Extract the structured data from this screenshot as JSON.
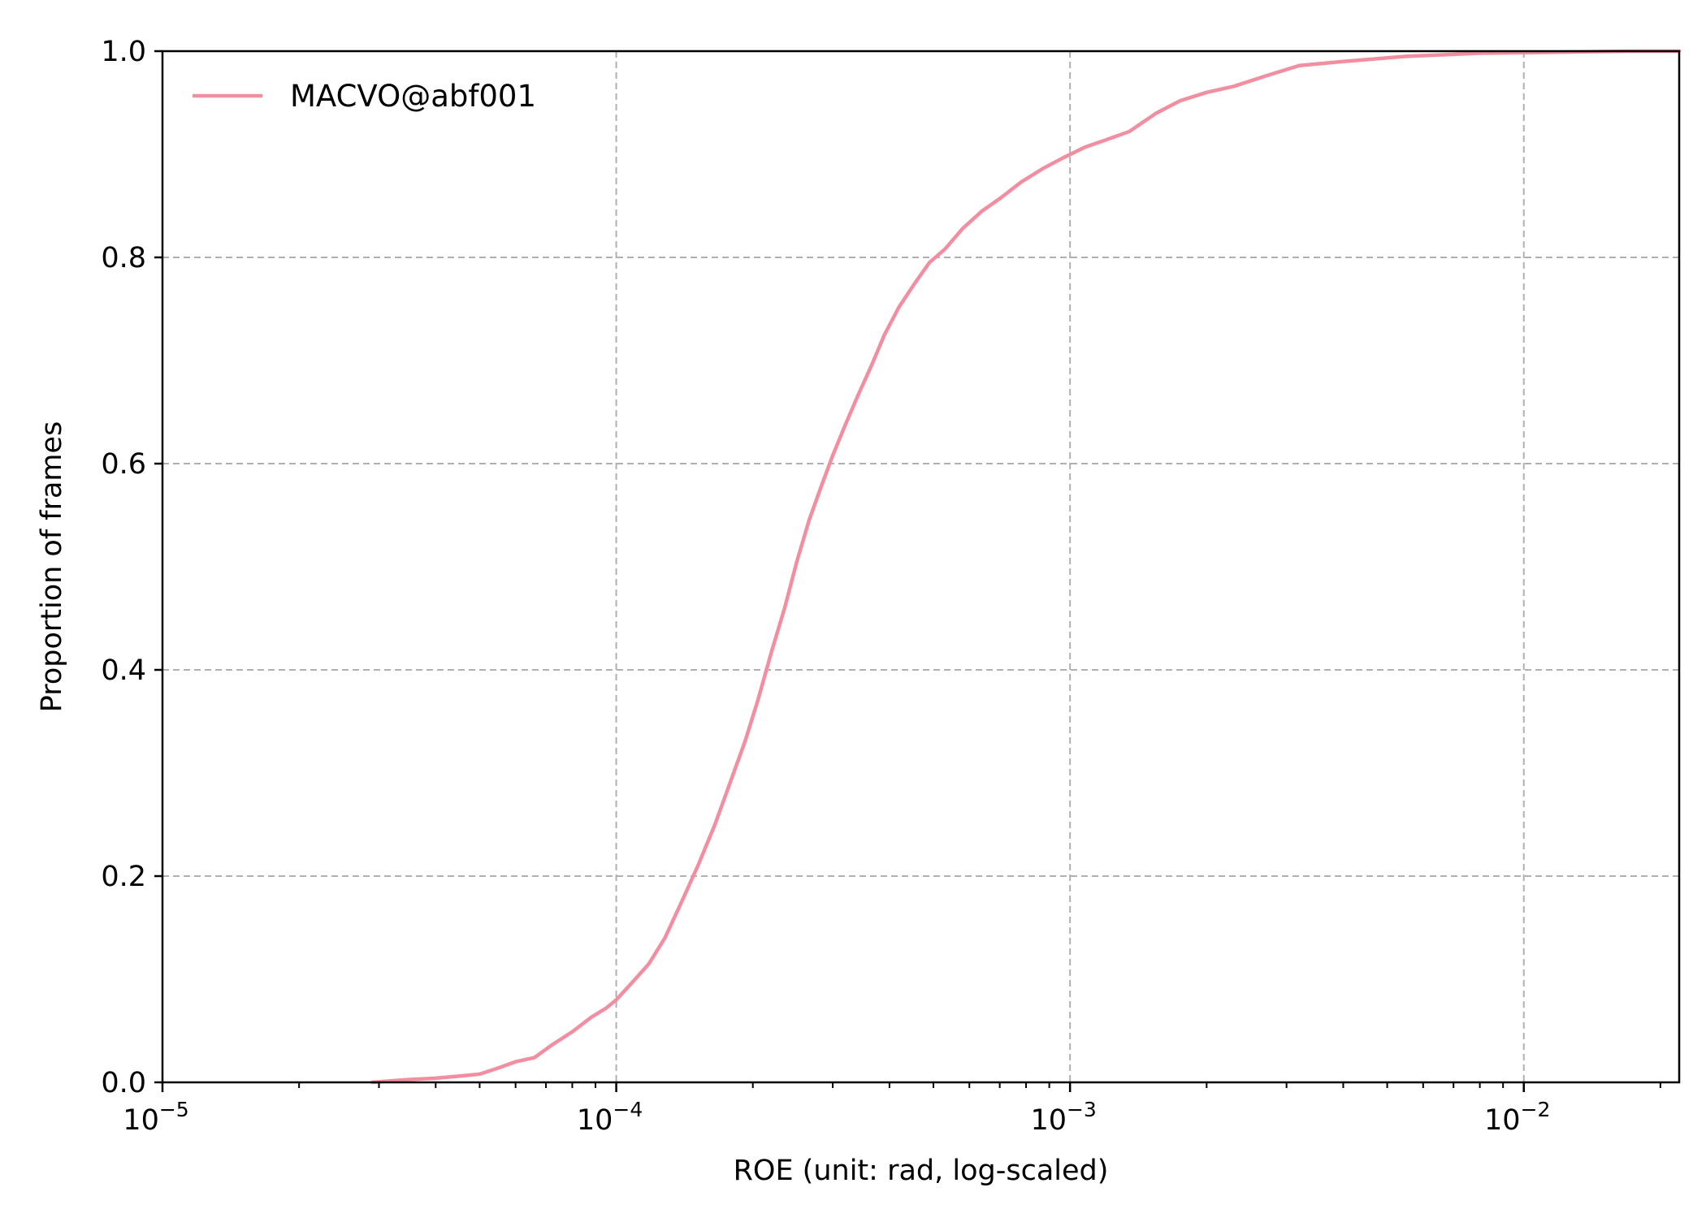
{
  "chart_data": {
    "type": "line",
    "title": "",
    "xlabel": "ROE (unit: rad, log-scaled)",
    "ylabel": "Proportion of frames",
    "xscale": "log",
    "xlim": [
      1e-05,
      0.022
    ],
    "ylim": [
      0.0,
      1.0
    ],
    "grid": true,
    "legend_position": "upper-left",
    "x_ticks": [
      {
        "value": 1e-05,
        "base": "10",
        "exp": "−5"
      },
      {
        "value": 0.0001,
        "base": "10",
        "exp": "−4"
      },
      {
        "value": 0.001,
        "base": "10",
        "exp": "−3"
      },
      {
        "value": 0.01,
        "base": "10",
        "exp": "−2"
      }
    ],
    "y_ticks": [
      {
        "value": 0.0,
        "label": "0.0"
      },
      {
        "value": 0.2,
        "label": "0.2"
      },
      {
        "value": 0.4,
        "label": "0.4"
      },
      {
        "value": 0.6,
        "label": "0.6"
      },
      {
        "value": 0.8,
        "label": "0.8"
      },
      {
        "value": 1.0,
        "label": "1.0"
      }
    ],
    "series": [
      {
        "name": "MACVO@abf001",
        "color": "#f28ea0",
        "x": [
          2.9e-05,
          3.3e-05,
          3.6e-05,
          4e-05,
          4.5e-05,
          5e-05,
          5.5e-05,
          6e-05,
          6.6e-05,
          7.2e-05,
          8e-05,
          8.8e-05,
          9.5e-05,
          0.0001,
          0.000108,
          0.000118,
          0.000128,
          0.00014,
          0.000152,
          0.000165,
          0.000178,
          0.000192,
          0.000205,
          0.00022,
          0.000235,
          0.00025,
          0.000266,
          0.000283,
          0.0003,
          0.00032,
          0.00034,
          0.000365,
          0.00039,
          0.00042,
          0.000455,
          0.00049,
          0.00053,
          0.00058,
          0.00064,
          0.0007,
          0.00078,
          0.00087,
          0.00097,
          0.00108,
          0.0012,
          0.00135,
          0.00155,
          0.00175,
          0.002,
          0.0023,
          0.0027,
          0.0032,
          0.004,
          0.0055,
          0.008,
          0.012,
          0.017,
          0.022
        ],
        "y": [
          0.0,
          0.002,
          0.003,
          0.004,
          0.006,
          0.008,
          0.014,
          0.02,
          0.024,
          0.036,
          0.049,
          0.063,
          0.072,
          0.08,
          0.096,
          0.115,
          0.14,
          0.177,
          0.212,
          0.25,
          0.29,
          0.33,
          0.37,
          0.418,
          0.46,
          0.505,
          0.545,
          0.578,
          0.608,
          0.638,
          0.665,
          0.695,
          0.725,
          0.752,
          0.775,
          0.795,
          0.808,
          0.828,
          0.845,
          0.857,
          0.873,
          0.886,
          0.897,
          0.907,
          0.914,
          0.922,
          0.94,
          0.952,
          0.96,
          0.966,
          0.976,
          0.986,
          0.99,
          0.995,
          0.998,
          0.999,
          1.0,
          1.0
        ]
      }
    ]
  }
}
